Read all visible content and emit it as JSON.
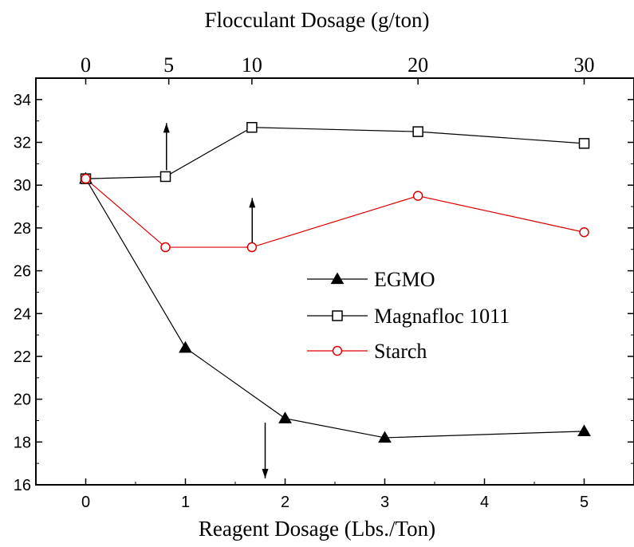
{
  "chart_data": {
    "type": "line",
    "title": "",
    "xlabel": "Reagent Dosage (Lbs./Ton)",
    "x2label": "Flocculant Dosage (g/ton)",
    "ylabel": "",
    "xlim": [
      -0.5,
      5.5
    ],
    "ylim": [
      16,
      35
    ],
    "x_ticks": [
      0,
      1,
      2,
      3,
      4,
      5
    ],
    "x_tick_labels": [
      "0",
      "1",
      "2",
      "3",
      "4",
      "5"
    ],
    "x2_ticks": [
      0,
      0.833,
      1.667,
      3.333,
      5
    ],
    "x2_tick_labels": [
      "0",
      "5",
      "10",
      "20",
      "30"
    ],
    "y_ticks": [
      16,
      18,
      20,
      22,
      24,
      26,
      28,
      30,
      32,
      34
    ],
    "y_tick_labels": [
      "16",
      "18",
      "20",
      "22",
      "24",
      "26",
      "28",
      "30",
      "32",
      "34"
    ],
    "grid": false,
    "legend_position": "center-right",
    "series": [
      {
        "name": "EGMO",
        "color": "#000000",
        "marker": "filled-triangle",
        "x": [
          0,
          1,
          2,
          3,
          5
        ],
        "y": [
          30.3,
          22.4,
          19.1,
          18.2,
          18.5
        ]
      },
      {
        "name": "Magnafloc 1011",
        "color": "#000000",
        "marker": "open-square",
        "x": [
          0,
          0.8,
          1.667,
          3.333,
          5
        ],
        "y": [
          30.3,
          30.4,
          32.7,
          32.5,
          31.95
        ]
      },
      {
        "name": "Starch",
        "color": "#dd0000",
        "marker": "open-circle",
        "x": [
          0,
          0.8,
          1.667,
          3.333,
          5
        ],
        "y": [
          30.3,
          27.1,
          27.1,
          29.5,
          27.8
        ]
      }
    ],
    "arrows": [
      {
        "x": 0.81,
        "from": 30.7,
        "to": 32.9,
        "direction": "up"
      },
      {
        "x": 1.67,
        "from": 27.3,
        "to": 29.4,
        "direction": "up"
      },
      {
        "x": 1.8,
        "from": 18.9,
        "to": 16.3,
        "direction": "down"
      }
    ]
  }
}
